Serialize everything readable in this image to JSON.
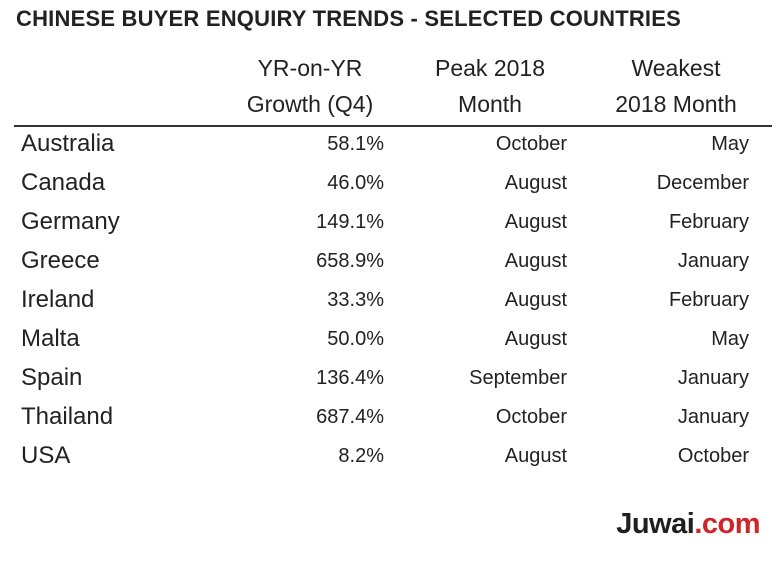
{
  "title": "CHINESE BUYER ENQUIRY TRENDS - SELECTED COUNTRIES",
  "columns": [
    {
      "line1": "YR-on-YR",
      "line2": "Growth (Q4)"
    },
    {
      "line1": "Peak 2018",
      "line2": "Month"
    },
    {
      "line1": "Weakest",
      "line2": "2018 Month"
    }
  ],
  "brand": {
    "name": "Juwai",
    "tld": ".com"
  },
  "chart_data": {
    "type": "table",
    "title": "CHINESE BUYER ENQUIRY TRENDS - SELECTED COUNTRIES",
    "headers": [
      "",
      "YR-on-YR Growth (Q4)",
      "Peak 2018 Month",
      "Weakest 2018 Month"
    ],
    "rows": [
      {
        "country": "Australia",
        "growth": "58.1%",
        "peak": "October",
        "weakest": "May"
      },
      {
        "country": "Canada",
        "growth": "46.0%",
        "peak": "August",
        "weakest": "December"
      },
      {
        "country": "Germany",
        "growth": "149.1%",
        "peak": "August",
        "weakest": "February"
      },
      {
        "country": "Greece",
        "growth": "658.9%",
        "peak": "August",
        "weakest": "January"
      },
      {
        "country": "Ireland",
        "growth": "33.3%",
        "peak": "August",
        "weakest": "February"
      },
      {
        "country": "Malta",
        "growth": "50.0%",
        "peak": "August",
        "weakest": "May"
      },
      {
        "country": "Spain",
        "growth": "136.4%",
        "peak": "September",
        "weakest": "January"
      },
      {
        "country": "Thailand",
        "growth": "687.4%",
        "peak": "October",
        "weakest": "January"
      },
      {
        "country": "USA",
        "growth": "8.2%",
        "peak": "August",
        "weakest": "October"
      }
    ]
  }
}
